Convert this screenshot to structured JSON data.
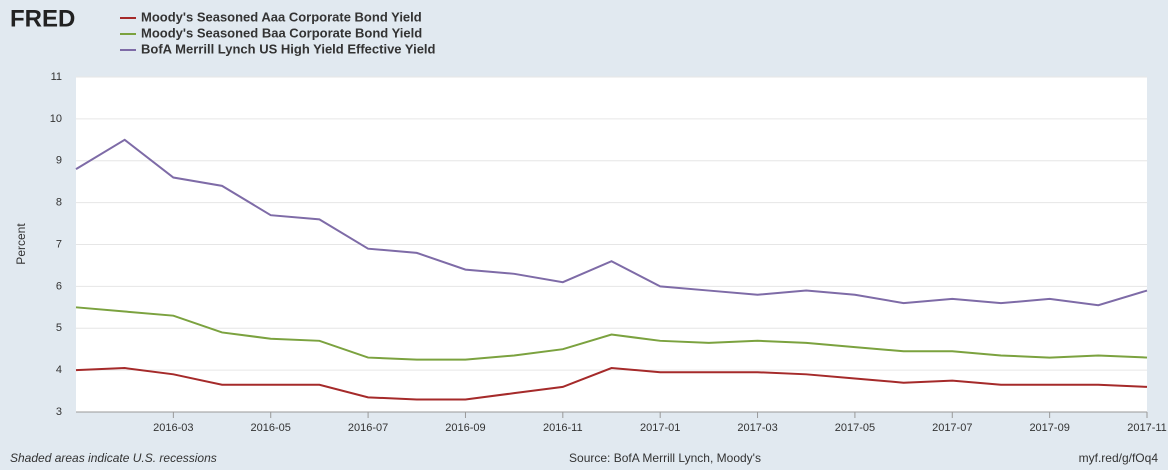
{
  "brand": "FRED",
  "chart_data": {
    "type": "line",
    "x": [
      "2016-01",
      "2016-02",
      "2016-03",
      "2016-04",
      "2016-05",
      "2016-06",
      "2016-07",
      "2016-08",
      "2016-09",
      "2016-10",
      "2016-11",
      "2016-12",
      "2017-01",
      "2017-02",
      "2017-03",
      "2017-04",
      "2017-05",
      "2017-06",
      "2017-07",
      "2017-08",
      "2017-09",
      "2017-10",
      "2017-11"
    ],
    "series": [
      {
        "name": "Moody's Seasoned Aaa Corporate Bond Yield",
        "color": "#a52a2a",
        "values": [
          4.0,
          4.05,
          3.9,
          3.65,
          3.65,
          3.65,
          3.35,
          3.3,
          3.3,
          3.45,
          3.6,
          4.05,
          3.95,
          3.95,
          3.95,
          3.9,
          3.8,
          3.7,
          3.75,
          3.65,
          3.65,
          3.65,
          3.6
        ]
      },
      {
        "name": "Moody's Seasoned Baa Corporate Bond Yield",
        "color": "#7ba23f",
        "values": [
          5.5,
          5.4,
          5.3,
          4.9,
          4.75,
          4.7,
          4.3,
          4.25,
          4.25,
          4.35,
          4.5,
          4.85,
          4.7,
          4.65,
          4.7,
          4.65,
          4.55,
          4.45,
          4.45,
          4.35,
          4.3,
          4.35,
          4.3
        ]
      },
      {
        "name": "BofA Merrill Lynch US High Yield Effective Yield",
        "color": "#7e6ba7",
        "values": [
          8.8,
          9.5,
          8.6,
          8.4,
          7.7,
          7.6,
          6.9,
          6.8,
          6.4,
          6.3,
          6.1,
          6.6,
          6.0,
          5.9,
          5.8,
          5.9,
          5.8,
          5.6,
          5.7,
          5.6,
          5.7,
          5.55,
          5.9
        ]
      }
    ],
    "y_label": "Percent",
    "xlim": [
      "2016-01",
      "2017-11"
    ],
    "xticks": [
      "2016-03",
      "2016-05",
      "2016-07",
      "2016-09",
      "2016-11",
      "2017-01",
      "2017-03",
      "2017-05",
      "2017-07",
      "2017-09",
      "2017-11"
    ],
    "ylim": [
      3,
      11
    ],
    "yticks": [
      3,
      4,
      5,
      6,
      7,
      8,
      9,
      10,
      11
    ],
    "grid": true
  },
  "footer": {
    "note": "Shaded areas indicate U.S. recessions",
    "source": "Source: BofA Merrill Lynch, Moody's",
    "url": "myf.red/g/fOq4"
  }
}
